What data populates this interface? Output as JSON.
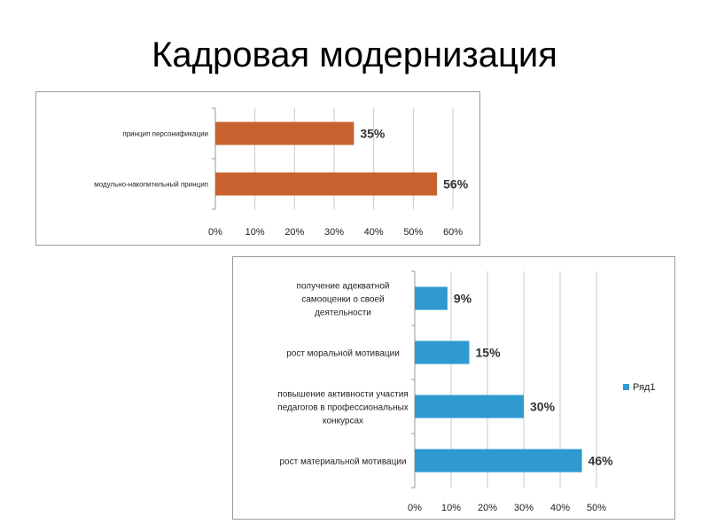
{
  "slide": {
    "title": "Кадровая модернизация"
  },
  "chart_data": [
    {
      "type": "bar",
      "orientation": "horizontal",
      "categories": [
        "принцип персонификации",
        "модульно-накопительный принцип"
      ],
      "values": [
        35,
        56
      ],
      "data_labels": [
        "35%",
        "56%"
      ],
      "xlim": [
        0,
        60
      ],
      "xticks": [
        "0%",
        "10%",
        "20%",
        "30%",
        "40%",
        "50%",
        "60%"
      ],
      "grid": true,
      "bar_color": "#C9622F",
      "title": "",
      "xlabel": "",
      "ylabel": ""
    },
    {
      "type": "bar",
      "orientation": "horizontal",
      "categories": [
        [
          "получение адекватной",
          "самооценки о своей",
          "деятельности"
        ],
        [
          "рост моральной мотивации"
        ],
        [
          "повышение активности участия",
          "педагогов в профессиональных",
          "конкурсах"
        ],
        [
          "рост материальной мотивации"
        ]
      ],
      "series": [
        {
          "name": "Ряд1",
          "values": [
            9,
            15,
            30,
            46
          ]
        }
      ],
      "data_labels": [
        "9%",
        "15%",
        "30%",
        "46%"
      ],
      "xlim": [
        0,
        50
      ],
      "xticks": [
        "0%",
        "10%",
        "20%",
        "30%",
        "40%",
        "50%"
      ],
      "grid": true,
      "legend": "right",
      "bar_color": "#2E9AD0",
      "title": "",
      "xlabel": "",
      "ylabel": ""
    }
  ]
}
